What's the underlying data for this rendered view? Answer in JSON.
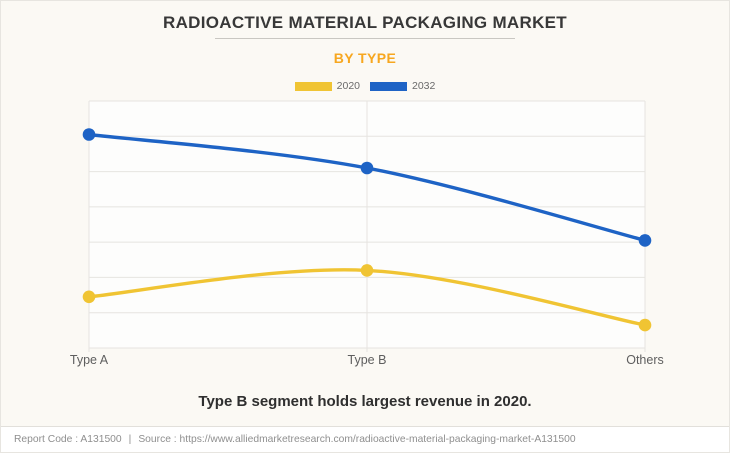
{
  "header": {
    "title": "RADIOACTIVE MATERIAL PACKAGING MARKET",
    "subtitle": "BY TYPE"
  },
  "chart_data": {
    "type": "line",
    "title": "RADIOACTIVE MATERIAL PACKAGING MARKET",
    "subtitle": "BY TYPE",
    "categories": [
      "Type A",
      "Type B",
      "Others"
    ],
    "series": [
      {
        "name": "2020",
        "color": "#F0C433",
        "values": [
          1.45,
          2.2,
          0.65
        ]
      },
      {
        "name": "2032",
        "color": "#1E63C5",
        "values": [
          6.05,
          5.1,
          3.05
        ]
      }
    ],
    "xlabel": "",
    "ylabel": "",
    "ylim": [
      0,
      7
    ],
    "grid": true,
    "legend_position": "top"
  },
  "caption": "Type B segment holds largest revenue in 2020.",
  "footer": {
    "report_code": "Report Code : A131500",
    "divider": "|",
    "source": "Source : https://www.alliedmarketresearch.com/radioactive-material-packaging-market-A131500"
  },
  "colors": {
    "page_background": "#FBF9F4",
    "plot_background": "#FDFDFC",
    "grid": "#E6E4E0",
    "axis_label": "#5E5E5E",
    "title": "#383838",
    "subtitle": "#F7A71F",
    "caption": "#2F2F2F",
    "footer_text": "#8F8F8F",
    "footer_background": "#FFFFFF"
  }
}
